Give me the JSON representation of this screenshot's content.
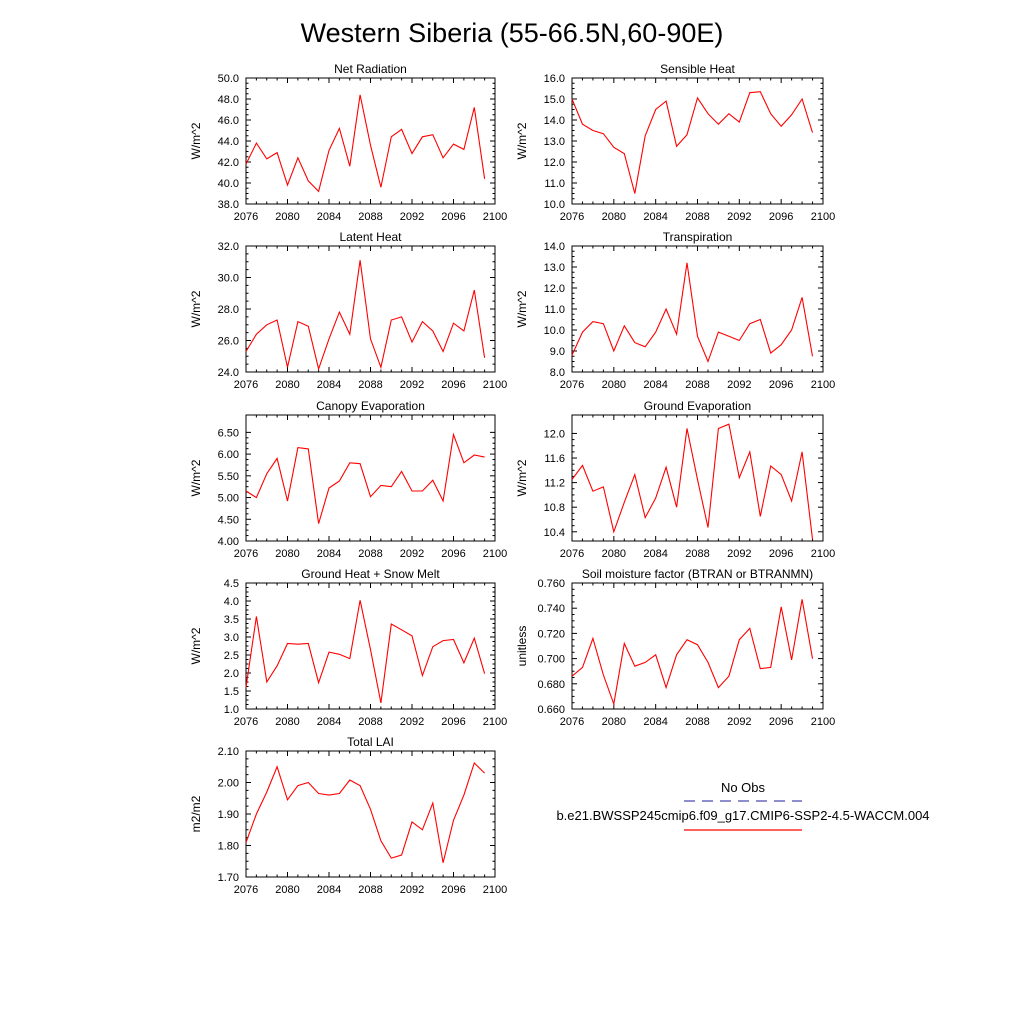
{
  "figure": {
    "title": "Western Siberia (55-66.5N,60-90E)"
  },
  "legend": {
    "entries": [
      {
        "label": "No Obs",
        "color": "#4a4ab0",
        "style": "dashed"
      },
      {
        "label": "b.e21.BWSSP245cmip6.f09_g17.CMIP6-SSP2-4.5-WACCM.004",
        "color": "#ff0000",
        "style": "solid"
      }
    ]
  },
  "chart_data": [
    {
      "type": "line",
      "title": "Net Radiation",
      "ylabel": "W/m^2",
      "xlim": [
        2076,
        2100
      ],
      "ylim": [
        38.0,
        50.0
      ],
      "xticks": [
        2076,
        2080,
        2084,
        2088,
        2092,
        2096,
        2100
      ],
      "yticks": [
        "38.0",
        "40.0",
        "42.0",
        "44.0",
        "46.0",
        "48.0",
        "50.0"
      ],
      "x": [
        2076,
        2077,
        2078,
        2079,
        2080,
        2081,
        2082,
        2083,
        2084,
        2085,
        2086,
        2087,
        2088,
        2089,
        2090,
        2091,
        2092,
        2093,
        2094,
        2095,
        2096,
        2097,
        2098,
        2099
      ],
      "series": [
        {
          "color": "#ff0000",
          "values": [
            41.8,
            43.8,
            42.3,
            42.9,
            39.8,
            42.4,
            40.2,
            39.2,
            43.1,
            45.2,
            41.6,
            48.4,
            43.6,
            39.6,
            44.4,
            45.1,
            42.8,
            44.4,
            44.6,
            42.4,
            43.7,
            43.2,
            47.2,
            40.4
          ]
        }
      ]
    },
    {
      "type": "line",
      "title": "Sensible Heat",
      "ylabel": "W/m^2",
      "xlim": [
        2076,
        2100
      ],
      "ylim": [
        10.0,
        16.0
      ],
      "xticks": [
        2076,
        2080,
        2084,
        2088,
        2092,
        2096,
        2100
      ],
      "yticks": [
        "10.0",
        "11.0",
        "12.0",
        "13.0",
        "14.0",
        "15.0",
        "16.0"
      ],
      "x": [
        2076,
        2077,
        2078,
        2079,
        2080,
        2081,
        2082,
        2083,
        2084,
        2085,
        2086,
        2087,
        2088,
        2089,
        2090,
        2091,
        2092,
        2093,
        2094,
        2095,
        2096,
        2097,
        2098,
        2099
      ],
      "series": [
        {
          "color": "#ff0000",
          "values": [
            15.0,
            13.8,
            13.5,
            13.35,
            12.7,
            12.4,
            10.5,
            13.25,
            14.5,
            14.9,
            12.75,
            13.3,
            15.05,
            14.3,
            13.8,
            14.3,
            13.9,
            15.3,
            15.35,
            14.3,
            13.7,
            14.25,
            15.0,
            13.4
          ]
        }
      ]
    },
    {
      "type": "line",
      "title": "Latent Heat",
      "ylabel": "W/m^2",
      "xlim": [
        2076,
        2100
      ],
      "ylim": [
        24.0,
        32.0
      ],
      "xticks": [
        2076,
        2080,
        2084,
        2088,
        2092,
        2096,
        2100
      ],
      "yticks": [
        "24.0",
        "26.0",
        "28.0",
        "30.0",
        "32.0"
      ],
      "x": [
        2076,
        2077,
        2078,
        2079,
        2080,
        2081,
        2082,
        2083,
        2084,
        2085,
        2086,
        2087,
        2088,
        2089,
        2090,
        2091,
        2092,
        2093,
        2094,
        2095,
        2096,
        2097,
        2098,
        2099
      ],
      "series": [
        {
          "color": "#ff0000",
          "values": [
            25.3,
            26.4,
            27.0,
            27.3,
            24.3,
            27.2,
            26.9,
            24.2,
            26.1,
            27.8,
            26.4,
            31.1,
            26.1,
            24.3,
            27.3,
            27.5,
            25.9,
            27.2,
            26.6,
            25.3,
            27.1,
            26.6,
            29.2,
            24.9
          ]
        }
      ]
    },
    {
      "type": "line",
      "title": "Transpiration",
      "ylabel": "W/m^2",
      "xlim": [
        2076,
        2100
      ],
      "ylim": [
        8.0,
        14.0
      ],
      "xticks": [
        2076,
        2080,
        2084,
        2088,
        2092,
        2096,
        2100
      ],
      "yticks": [
        "8.0",
        "9.0",
        "10.0",
        "11.0",
        "12.0",
        "13.0",
        "14.0"
      ],
      "x": [
        2076,
        2077,
        2078,
        2079,
        2080,
        2081,
        2082,
        2083,
        2084,
        2085,
        2086,
        2087,
        2088,
        2089,
        2090,
        2091,
        2092,
        2093,
        2094,
        2095,
        2096,
        2097,
        2098,
        2099
      ],
      "series": [
        {
          "color": "#ff0000",
          "values": [
            8.8,
            9.9,
            10.4,
            10.3,
            9.0,
            10.2,
            9.4,
            9.2,
            9.9,
            11.0,
            9.8,
            13.2,
            9.7,
            8.5,
            9.9,
            9.7,
            9.5,
            10.3,
            10.5,
            8.9,
            9.3,
            10.0,
            11.55,
            8.75
          ]
        }
      ]
    },
    {
      "type": "line",
      "title": "Canopy Evaporation",
      "ylabel": "W/m^2",
      "xlim": [
        2076,
        2100
      ],
      "ylim": [
        4.0,
        6.9
      ],
      "xticks": [
        2076,
        2080,
        2084,
        2088,
        2092,
        2096,
        2100
      ],
      "yticks": [
        "4.00",
        "4.50",
        "5.00",
        "5.50",
        "6.00",
        "6.50"
      ],
      "x": [
        2076,
        2077,
        2078,
        2079,
        2080,
        2081,
        2082,
        2083,
        2084,
        2085,
        2086,
        2087,
        2088,
        2089,
        2090,
        2091,
        2092,
        2093,
        2094,
        2095,
        2096,
        2097,
        2098,
        2099
      ],
      "series": [
        {
          "color": "#ff0000",
          "values": [
            5.15,
            5.0,
            5.55,
            5.9,
            4.92,
            6.15,
            6.12,
            4.4,
            5.22,
            5.38,
            5.8,
            5.78,
            5.02,
            5.28,
            5.25,
            5.6,
            5.15,
            5.15,
            5.4,
            4.92,
            6.45,
            5.8,
            5.98,
            5.93
          ]
        }
      ]
    },
    {
      "type": "line",
      "title": "Ground Evaporation",
      "ylabel": "W/m^2",
      "xlim": [
        2076,
        2100
      ],
      "ylim": [
        10.25,
        12.3
      ],
      "xticks": [
        2076,
        2080,
        2084,
        2088,
        2092,
        2096,
        2100
      ],
      "yticks": [
        "10.4",
        "10.8",
        "11.2",
        "11.6",
        "12.0"
      ],
      "x": [
        2076,
        2077,
        2078,
        2079,
        2080,
        2081,
        2082,
        2083,
        2084,
        2085,
        2086,
        2087,
        2088,
        2089,
        2090,
        2091,
        2092,
        2093,
        2094,
        2095,
        2096,
        2097,
        2098,
        2099
      ],
      "series": [
        {
          "color": "#ff0000",
          "values": [
            11.25,
            11.48,
            11.06,
            11.13,
            10.4,
            10.88,
            11.33,
            10.63,
            10.95,
            11.45,
            10.8,
            12.08,
            11.25,
            10.47,
            12.08,
            12.15,
            11.28,
            11.7,
            10.65,
            11.47,
            11.33,
            10.9,
            11.7,
            10.28
          ]
        }
      ]
    },
    {
      "type": "line",
      "title": "Ground Heat + Snow Melt",
      "ylabel": "W/m^2",
      "xlim": [
        2076,
        2100
      ],
      "ylim": [
        1.0,
        4.5
      ],
      "xticks": [
        2076,
        2080,
        2084,
        2088,
        2092,
        2096,
        2100
      ],
      "yticks": [
        "1.0",
        "1.5",
        "2.0",
        "2.5",
        "3.0",
        "3.5",
        "4.0",
        "4.5"
      ],
      "x": [
        2076,
        2077,
        2078,
        2079,
        2080,
        2081,
        2082,
        2083,
        2084,
        2085,
        2086,
        2087,
        2088,
        2089,
        2090,
        2091,
        2092,
        2093,
        2094,
        2095,
        2096,
        2097,
        2098,
        2099
      ],
      "series": [
        {
          "color": "#ff0000",
          "values": [
            1.6,
            3.57,
            1.75,
            2.2,
            2.82,
            2.8,
            2.82,
            1.73,
            2.58,
            2.52,
            2.4,
            4.02,
            2.65,
            1.17,
            3.36,
            3.2,
            3.03,
            1.93,
            2.73,
            2.9,
            2.93,
            2.28,
            2.97,
            1.98
          ]
        }
      ]
    },
    {
      "type": "line",
      "title": "Soil moisture factor (BTRAN or BTRANMN)",
      "ylabel": "unitless",
      "xlim": [
        2076,
        2100
      ],
      "ylim": [
        0.66,
        0.76
      ],
      "xticks": [
        2076,
        2080,
        2084,
        2088,
        2092,
        2096,
        2100
      ],
      "yticks": [
        "0.660",
        "0.680",
        "0.700",
        "0.720",
        "0.740",
        "0.760"
      ],
      "x": [
        2076,
        2077,
        2078,
        2079,
        2080,
        2081,
        2082,
        2083,
        2084,
        2085,
        2086,
        2087,
        2088,
        2089,
        2090,
        2091,
        2092,
        2093,
        2094,
        2095,
        2096,
        2097,
        2098,
        2099
      ],
      "series": [
        {
          "color": "#ff0000",
          "values": [
            0.686,
            0.693,
            0.716,
            0.687,
            0.664,
            0.712,
            0.694,
            0.697,
            0.703,
            0.677,
            0.703,
            0.715,
            0.711,
            0.697,
            0.677,
            0.686,
            0.715,
            0.724,
            0.692,
            0.693,
            0.741,
            0.699,
            0.747,
            0.7
          ]
        }
      ]
    },
    {
      "type": "line",
      "title": "Total LAI",
      "ylabel": "m2/m2",
      "xlim": [
        2076,
        2100
      ],
      "ylim": [
        1.7,
        2.1
      ],
      "xticks": [
        2076,
        2080,
        2084,
        2088,
        2092,
        2096,
        2100
      ],
      "yticks": [
        "1.70",
        "1.80",
        "1.90",
        "2.00",
        "2.10"
      ],
      "x": [
        2076,
        2077,
        2078,
        2079,
        2080,
        2081,
        2082,
        2083,
        2084,
        2085,
        2086,
        2087,
        2088,
        2089,
        2090,
        2091,
        2092,
        2093,
        2094,
        2095,
        2096,
        2097,
        2098,
        2099
      ],
      "series": [
        {
          "color": "#ff0000",
          "values": [
            1.81,
            1.9,
            1.97,
            2.05,
            1.945,
            1.99,
            2.0,
            1.965,
            1.96,
            1.965,
            2.008,
            1.99,
            1.915,
            1.815,
            1.76,
            1.77,
            1.875,
            1.85,
            1.935,
            1.745,
            1.88,
            1.96,
            2.062,
            2.03
          ]
        }
      ]
    }
  ]
}
